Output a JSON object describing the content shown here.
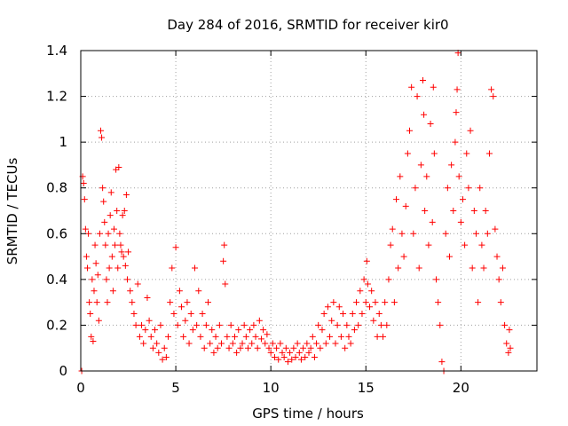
{
  "chart_data": {
    "type": "scatter",
    "title": "Day 284 of 2016, SRMTID for receiver kir0",
    "xlabel": "GPS time / hours",
    "ylabel": "SRMTID / TECUs",
    "xlim": [
      0,
      24
    ],
    "ylim": [
      0,
      1.4
    ],
    "xticks": [
      0,
      5,
      10,
      15,
      20
    ],
    "xtick_labels": [
      "0",
      "5",
      "10",
      "15",
      "20"
    ],
    "yticks": [
      0,
      0.2,
      0.4,
      0.6,
      0.8,
      1.0,
      1.2,
      1.4
    ],
    "ytick_labels": [
      "0",
      "0.2",
      "0.4",
      "0.6",
      "0.8",
      "1",
      "1.2",
      "1.4"
    ],
    "grid": true,
    "marker": "plus",
    "color": "#ff0000",
    "series": [
      {
        "name": "SRMTID",
        "points": [
          [
            0.05,
            0.0
          ],
          [
            0.1,
            0.85
          ],
          [
            0.15,
            0.82
          ],
          [
            0.2,
            0.75
          ],
          [
            0.25,
            0.62
          ],
          [
            0.3,
            0.5
          ],
          [
            0.35,
            0.45
          ],
          [
            0.4,
            0.6
          ],
          [
            0.45,
            0.3
          ],
          [
            0.5,
            0.25
          ],
          [
            0.55,
            0.15
          ],
          [
            0.6,
            0.4
          ],
          [
            0.65,
            0.13
          ],
          [
            0.7,
            0.35
          ],
          [
            0.75,
            0.55
          ],
          [
            0.8,
            0.47
          ],
          [
            0.85,
            0.3
          ],
          [
            0.9,
            0.42
          ],
          [
            0.95,
            0.22
          ],
          [
            1.0,
            0.6
          ],
          [
            1.05,
            1.05
          ],
          [
            1.1,
            1.02
          ],
          [
            1.15,
            0.8
          ],
          [
            1.2,
            0.74
          ],
          [
            1.25,
            0.65
          ],
          [
            1.3,
            0.55
          ],
          [
            1.35,
            0.4
          ],
          [
            1.4,
            0.3
          ],
          [
            1.45,
            0.6
          ],
          [
            1.5,
            0.45
          ],
          [
            1.55,
            0.68
          ],
          [
            1.6,
            0.78
          ],
          [
            1.65,
            0.5
          ],
          [
            1.7,
            0.35
          ],
          [
            1.75,
            0.62
          ],
          [
            1.8,
            0.55
          ],
          [
            1.85,
            0.88
          ],
          [
            1.9,
            0.7
          ],
          [
            1.95,
            0.45
          ],
          [
            2.0,
            0.89
          ],
          [
            2.05,
            0.6
          ],
          [
            2.1,
            0.55
          ],
          [
            2.15,
            0.52
          ],
          [
            2.2,
            0.68
          ],
          [
            2.25,
            0.5
          ],
          [
            2.3,
            0.7
          ],
          [
            2.35,
            0.46
          ],
          [
            2.4,
            0.77
          ],
          [
            2.45,
            0.4
          ],
          [
            2.5,
            0.52
          ],
          [
            2.6,
            0.35
          ],
          [
            2.7,
            0.3
          ],
          [
            2.8,
            0.25
          ],
          [
            2.9,
            0.2
          ],
          [
            3.0,
            0.38
          ],
          [
            3.1,
            0.15
          ],
          [
            3.2,
            0.2
          ],
          [
            3.3,
            0.12
          ],
          [
            3.4,
            0.18
          ],
          [
            3.5,
            0.32
          ],
          [
            3.6,
            0.22
          ],
          [
            3.7,
            0.15
          ],
          [
            3.8,
            0.1
          ],
          [
            3.9,
            0.18
          ],
          [
            4.0,
            0.12
          ],
          [
            4.1,
            0.08
          ],
          [
            4.2,
            0.2
          ],
          [
            4.3,
            0.05
          ],
          [
            4.4,
            0.1
          ],
          [
            4.5,
            0.06
          ],
          [
            4.6,
            0.15
          ],
          [
            4.7,
            0.3
          ],
          [
            4.8,
            0.45
          ],
          [
            4.9,
            0.25
          ],
          [
            5.0,
            0.54
          ],
          [
            5.1,
            0.2
          ],
          [
            5.2,
            0.35
          ],
          [
            5.3,
            0.28
          ],
          [
            5.4,
            0.15
          ],
          [
            5.5,
            0.22
          ],
          [
            5.6,
            0.3
          ],
          [
            5.7,
            0.12
          ],
          [
            5.8,
            0.25
          ],
          [
            5.9,
            0.18
          ],
          [
            6.0,
            0.45
          ],
          [
            6.1,
            0.2
          ],
          [
            6.2,
            0.35
          ],
          [
            6.3,
            0.15
          ],
          [
            6.4,
            0.25
          ],
          [
            6.5,
            0.1
          ],
          [
            6.6,
            0.2
          ],
          [
            6.7,
            0.3
          ],
          [
            6.8,
            0.12
          ],
          [
            6.9,
            0.18
          ],
          [
            7.0,
            0.08
          ],
          [
            7.1,
            0.15
          ],
          [
            7.2,
            0.1
          ],
          [
            7.3,
            0.2
          ],
          [
            7.4,
            0.12
          ],
          [
            7.5,
            0.48
          ],
          [
            7.55,
            0.55
          ],
          [
            7.6,
            0.38
          ],
          [
            7.7,
            0.15
          ],
          [
            7.8,
            0.1
          ],
          [
            7.9,
            0.2
          ],
          [
            8.0,
            0.12
          ],
          [
            8.1,
            0.15
          ],
          [
            8.2,
            0.08
          ],
          [
            8.3,
            0.18
          ],
          [
            8.4,
            0.1
          ],
          [
            8.5,
            0.12
          ],
          [
            8.6,
            0.2
          ],
          [
            8.7,
            0.15
          ],
          [
            8.8,
            0.1
          ],
          [
            8.9,
            0.18
          ],
          [
            9.0,
            0.12
          ],
          [
            9.1,
            0.2
          ],
          [
            9.2,
            0.15
          ],
          [
            9.3,
            0.1
          ],
          [
            9.4,
            0.22
          ],
          [
            9.5,
            0.14
          ],
          [
            9.6,
            0.18
          ],
          [
            9.7,
            0.12
          ],
          [
            9.8,
            0.16
          ],
          [
            9.9,
            0.1
          ],
          [
            10.0,
            0.08
          ],
          [
            10.1,
            0.12
          ],
          [
            10.2,
            0.06
          ],
          [
            10.3,
            0.1
          ],
          [
            10.4,
            0.05
          ],
          [
            10.5,
            0.12
          ],
          [
            10.6,
            0.08
          ],
          [
            10.7,
            0.06
          ],
          [
            10.8,
            0.1
          ],
          [
            10.9,
            0.04
          ],
          [
            11.0,
            0.08
          ],
          [
            11.1,
            0.05
          ],
          [
            11.2,
            0.1
          ],
          [
            11.3,
            0.06
          ],
          [
            11.4,
            0.12
          ],
          [
            11.5,
            0.08
          ],
          [
            11.6,
            0.05
          ],
          [
            11.7,
            0.1
          ],
          [
            11.8,
            0.06
          ],
          [
            11.9,
            0.12
          ],
          [
            12.0,
            0.08
          ],
          [
            12.1,
            0.1
          ],
          [
            12.2,
            0.15
          ],
          [
            12.3,
            0.06
          ],
          [
            12.4,
            0.12
          ],
          [
            12.5,
            0.2
          ],
          [
            12.6,
            0.1
          ],
          [
            12.7,
            0.18
          ],
          [
            12.8,
            0.25
          ],
          [
            12.9,
            0.12
          ],
          [
            13.0,
            0.28
          ],
          [
            13.1,
            0.15
          ],
          [
            13.2,
            0.22
          ],
          [
            13.3,
            0.3
          ],
          [
            13.4,
            0.12
          ],
          [
            13.5,
            0.2
          ],
          [
            13.6,
            0.28
          ],
          [
            13.7,
            0.15
          ],
          [
            13.8,
            0.25
          ],
          [
            13.9,
            0.1
          ],
          [
            14.0,
            0.2
          ],
          [
            14.1,
            0.15
          ],
          [
            14.2,
            0.12
          ],
          [
            14.3,
            0.25
          ],
          [
            14.4,
            0.18
          ],
          [
            14.5,
            0.3
          ],
          [
            14.6,
            0.2
          ],
          [
            14.7,
            0.35
          ],
          [
            14.8,
            0.25
          ],
          [
            14.9,
            0.4
          ],
          [
            15.0,
            0.3
          ],
          [
            15.05,
            0.48
          ],
          [
            15.1,
            0.38
          ],
          [
            15.2,
            0.28
          ],
          [
            15.3,
            0.35
          ],
          [
            15.4,
            0.22
          ],
          [
            15.5,
            0.3
          ],
          [
            15.6,
            0.15
          ],
          [
            15.7,
            0.25
          ],
          [
            15.8,
            0.2
          ],
          [
            15.9,
            0.15
          ],
          [
            16.0,
            0.3
          ],
          [
            16.1,
            0.2
          ],
          [
            16.2,
            0.4
          ],
          [
            16.3,
            0.55
          ],
          [
            16.4,
            0.62
          ],
          [
            16.5,
            0.3
          ],
          [
            16.6,
            0.75
          ],
          [
            16.7,
            0.45
          ],
          [
            16.8,
            0.85
          ],
          [
            16.9,
            0.6
          ],
          [
            17.0,
            0.5
          ],
          [
            17.1,
            0.72
          ],
          [
            17.2,
            0.95
          ],
          [
            17.3,
            1.05
          ],
          [
            17.4,
            1.24
          ],
          [
            17.5,
            0.6
          ],
          [
            17.6,
            0.8
          ],
          [
            17.7,
            1.2
          ],
          [
            17.8,
            0.45
          ],
          [
            17.9,
            0.9
          ],
          [
            18.0,
            1.27
          ],
          [
            18.05,
            1.12
          ],
          [
            18.1,
            0.7
          ],
          [
            18.2,
            0.85
          ],
          [
            18.3,
            0.55
          ],
          [
            18.4,
            1.08
          ],
          [
            18.5,
            0.65
          ],
          [
            18.55,
            1.24
          ],
          [
            18.6,
            0.95
          ],
          [
            18.7,
            0.4
          ],
          [
            18.8,
            0.3
          ],
          [
            18.9,
            0.2
          ],
          [
            19.0,
            0.04
          ],
          [
            19.1,
            0.0
          ],
          [
            19.2,
            0.6
          ],
          [
            19.3,
            0.8
          ],
          [
            19.4,
            0.5
          ],
          [
            19.5,
            0.9
          ],
          [
            19.6,
            0.7
          ],
          [
            19.7,
            1.0
          ],
          [
            19.75,
            1.13
          ],
          [
            19.8,
            1.23
          ],
          [
            19.85,
            1.39
          ],
          [
            19.9,
            0.85
          ],
          [
            20.0,
            0.65
          ],
          [
            20.1,
            0.75
          ],
          [
            20.2,
            0.55
          ],
          [
            20.3,
            0.95
          ],
          [
            20.4,
            0.8
          ],
          [
            20.5,
            1.05
          ],
          [
            20.6,
            0.45
          ],
          [
            20.7,
            0.7
          ],
          [
            20.8,
            0.6
          ],
          [
            20.9,
            0.3
          ],
          [
            21.0,
            0.8
          ],
          [
            21.1,
            0.55
          ],
          [
            21.2,
            0.45
          ],
          [
            21.3,
            0.7
          ],
          [
            21.4,
            0.6
          ],
          [
            21.5,
            0.95
          ],
          [
            21.6,
            1.23
          ],
          [
            21.7,
            1.2
          ],
          [
            21.8,
            0.62
          ],
          [
            21.9,
            0.5
          ],
          [
            22.0,
            0.4
          ],
          [
            22.1,
            0.3
          ],
          [
            22.2,
            0.45
          ],
          [
            22.3,
            0.2
          ],
          [
            22.4,
            0.12
          ],
          [
            22.5,
            0.08
          ],
          [
            22.55,
            0.18
          ],
          [
            22.6,
            0.1
          ]
        ]
      }
    ]
  }
}
